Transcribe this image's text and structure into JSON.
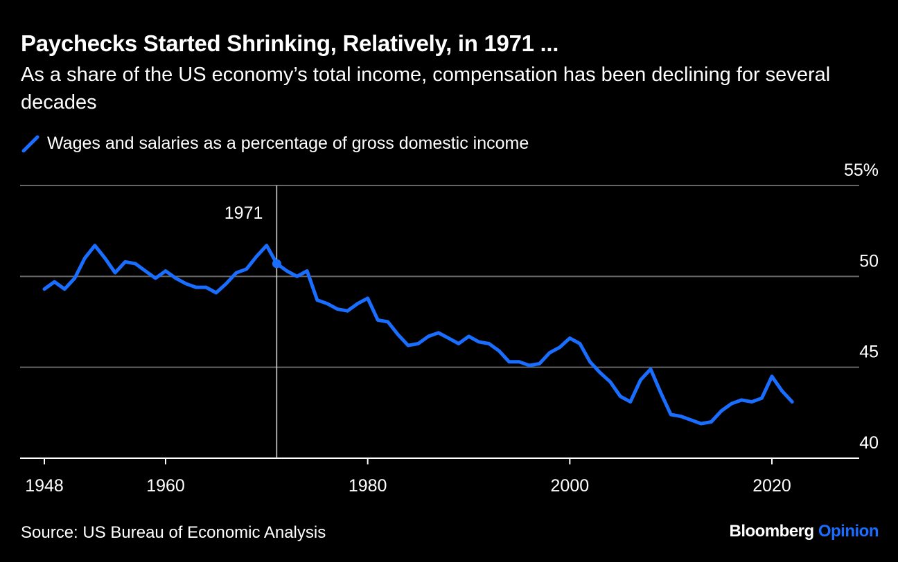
{
  "header": {
    "title": "Paychecks Started Shrinking, Relatively, in 1971 ...",
    "subtitle": "As a share of the US economy’s total income, compensation has been declining for several decades"
  },
  "footer": {
    "source": "Source: US Bureau of Economic Analysis",
    "brand_main": "Bloomberg",
    "brand_accent": "Opinion"
  },
  "chart_data": {
    "type": "line",
    "title": "Paychecks Started Shrinking, Relatively, in 1971 ...",
    "subtitle": "As a share of the US economy’s total income, compensation has been declining for several decades",
    "xlabel": "",
    "ylabel": "",
    "xlim": [
      1947,
      2025
    ],
    "ylim": [
      40,
      55
    ],
    "grid": true,
    "legend_position": "top-left",
    "line_color": "#1a6eff",
    "x_ticks": [
      "1948",
      "1960",
      "1980",
      "2000",
      "2020"
    ],
    "x_tick_values": [
      1948,
      1960,
      1980,
      2000,
      2020
    ],
    "y_ticks": [
      "55%",
      "50",
      "45",
      "40"
    ],
    "y_tick_values": [
      55,
      50,
      45,
      40
    ],
    "annotation": {
      "x": 1971,
      "label": "1971",
      "y": 50.7
    },
    "series": [
      {
        "name": "Wages and salaries as a percentage of gross domestic income",
        "x": [
          1948,
          1949,
          1950,
          1951,
          1952,
          1953,
          1954,
          1955,
          1956,
          1957,
          1958,
          1959,
          1960,
          1961,
          1962,
          1963,
          1964,
          1965,
          1966,
          1967,
          1968,
          1969,
          1970,
          1971,
          1972,
          1973,
          1974,
          1975,
          1976,
          1977,
          1978,
          1979,
          1980,
          1981,
          1982,
          1983,
          1984,
          1985,
          1986,
          1987,
          1988,
          1989,
          1990,
          1991,
          1992,
          1993,
          1994,
          1995,
          1996,
          1997,
          1998,
          1999,
          2000,
          2001,
          2002,
          2003,
          2004,
          2005,
          2006,
          2007,
          2008,
          2009,
          2010,
          2011,
          2012,
          2013,
          2014,
          2015,
          2016,
          2017,
          2018,
          2019,
          2020,
          2021,
          2022
        ],
        "values": [
          49.3,
          49.7,
          49.3,
          49.9,
          51.0,
          51.7,
          51.0,
          50.2,
          50.8,
          50.7,
          50.3,
          49.9,
          50.3,
          49.9,
          49.6,
          49.4,
          49.4,
          49.1,
          49.6,
          50.2,
          50.4,
          51.1,
          51.7,
          50.7,
          50.3,
          50.0,
          50.3,
          48.7,
          48.5,
          48.2,
          48.1,
          48.5,
          48.8,
          47.6,
          47.5,
          46.8,
          46.2,
          46.3,
          46.7,
          46.9,
          46.6,
          46.3,
          46.7,
          46.4,
          46.3,
          45.9,
          45.3,
          45.3,
          45.1,
          45.2,
          45.8,
          46.1,
          46.6,
          46.3,
          45.3,
          44.7,
          44.2,
          43.4,
          43.1,
          44.3,
          44.9,
          43.6,
          42.4,
          42.3,
          42.1,
          41.9,
          42.0,
          42.6,
          43.0,
          43.2,
          43.1,
          43.3,
          44.5,
          43.7,
          43.1
        ]
      }
    ]
  }
}
